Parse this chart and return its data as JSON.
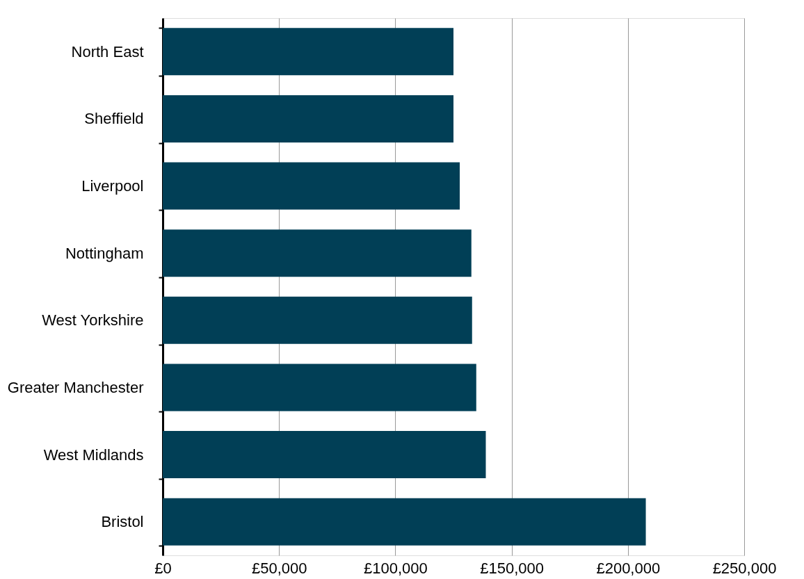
{
  "chart_data": {
    "type": "bar",
    "orientation": "horizontal",
    "categories": [
      "North East",
      "Sheffield",
      "Liverpool",
      "Nottingham",
      "West Yorkshire",
      "Greater Manchester",
      "West Midlands",
      "Bristol"
    ],
    "values": [
      125000,
      125000,
      127700,
      132700,
      133000,
      134800,
      138900,
      207700
    ],
    "color": "#013f56",
    "xlim": [
      0,
      250000
    ],
    "xticks": [
      {
        "value": 0,
        "label": "£0"
      },
      {
        "value": 50000,
        "label": "£50,000"
      },
      {
        "value": 100000,
        "label": "£100,000"
      },
      {
        "value": 150000,
        "label": "£150,000"
      },
      {
        "value": 200000,
        "label": "£200,000"
      },
      {
        "value": 250000,
        "label": "£250,000"
      }
    ],
    "grid": "x"
  }
}
